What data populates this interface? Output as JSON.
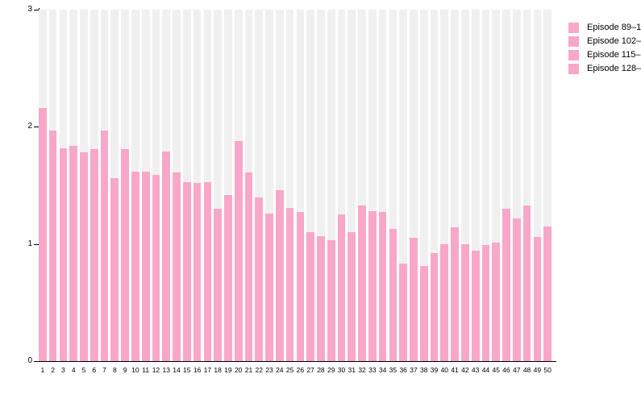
{
  "chart_data": {
    "type": "bar",
    "title": "",
    "xlabel": "",
    "ylabel": "",
    "categories": [
      "1",
      "2",
      "3",
      "4",
      "5",
      "6",
      "7",
      "8",
      "9",
      "10",
      "11",
      "12",
      "13",
      "14",
      "15",
      "16",
      "17",
      "18",
      "19",
      "20",
      "21",
      "22",
      "23",
      "24",
      "25",
      "26",
      "27",
      "28",
      "29",
      "30",
      "31",
      "32",
      "33",
      "34",
      "35",
      "36",
      "37",
      "38",
      "39",
      "40",
      "41",
      "42",
      "43",
      "44",
      "45",
      "46",
      "47",
      "48",
      "49",
      "50"
    ],
    "values": [
      2.16,
      1.97,
      1.82,
      1.84,
      1.78,
      1.81,
      1.97,
      1.56,
      1.81,
      1.62,
      1.62,
      1.59,
      1.79,
      1.61,
      1.53,
      1.52,
      1.53,
      1.3,
      1.42,
      1.88,
      1.61,
      1.4,
      1.26,
      1.46,
      1.31,
      1.27,
      1.1,
      1.07,
      1.03,
      1.25,
      1.1,
      1.33,
      1.28,
      1.27,
      1.13,
      0.83,
      1.05,
      0.81,
      0.92,
      1.0,
      1.14,
      1.0,
      0.94,
      0.99,
      1.01,
      1.3,
      1.22,
      1.33,
      1.06,
      1.15
    ],
    "ylim": [
      0,
      3
    ],
    "yticks": [
      0,
      1,
      2,
      3
    ],
    "grid": false,
    "legend_position": "right",
    "bar_color": "#f8a7c8",
    "track_color": "#f0f0f0",
    "track_full_value": 3
  },
  "legend": {
    "items": [
      {
        "label": "Episode 89–1",
        "color": "#f8a7c8"
      },
      {
        "label": "Episode 102–",
        "color": "#f8a7c8"
      },
      {
        "label": "Episode 115–",
        "color": "#f8a7c8"
      },
      {
        "label": "Episode 128–",
        "color": "#f8a7c8"
      }
    ]
  }
}
